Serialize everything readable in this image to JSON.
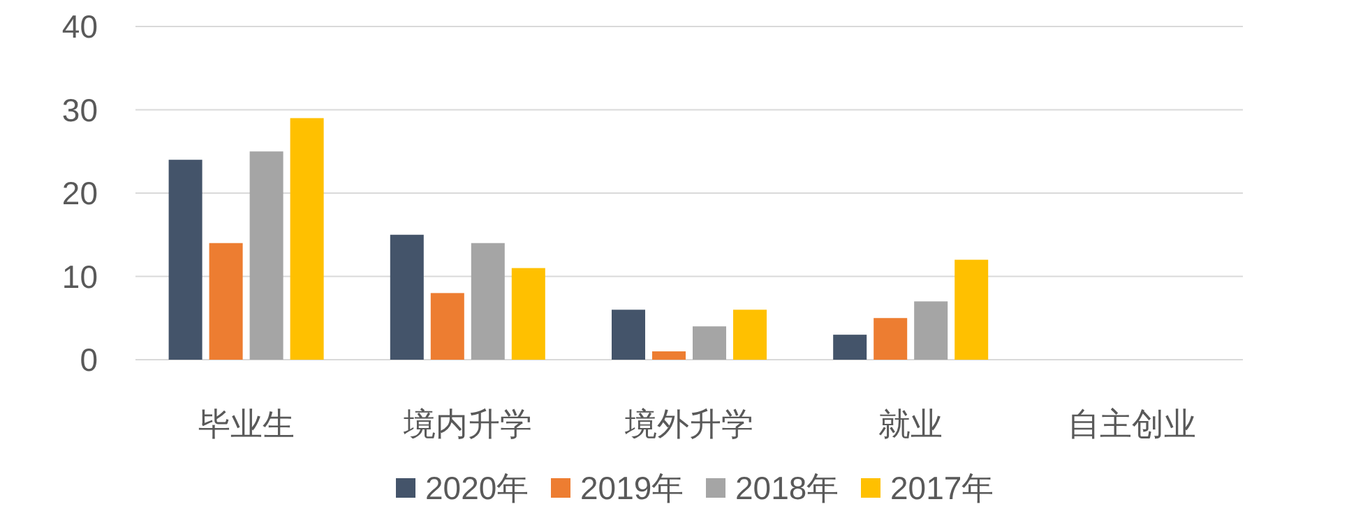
{
  "chart_data": {
    "type": "bar",
    "categories": [
      "毕业生",
      "境内升学",
      "境外升学",
      "就业",
      "自主创业"
    ],
    "series": [
      {
        "name": "2020年",
        "color": "#44546a",
        "values": [
          24,
          15,
          6,
          3,
          0
        ]
      },
      {
        "name": "2019年",
        "color": "#ed7d31",
        "values": [
          14,
          8,
          1,
          5,
          0
        ]
      },
      {
        "name": "2018年",
        "color": "#a5a5a5",
        "values": [
          25,
          14,
          4,
          7,
          0
        ]
      },
      {
        "name": "2017年",
        "color": "#ffc000",
        "values": [
          29,
          11,
          6,
          12,
          0
        ]
      }
    ],
    "ylim": [
      0,
      40
    ],
    "yticks": [
      0,
      10,
      20,
      30,
      40
    ],
    "grid": "y",
    "legend": "bottom"
  }
}
